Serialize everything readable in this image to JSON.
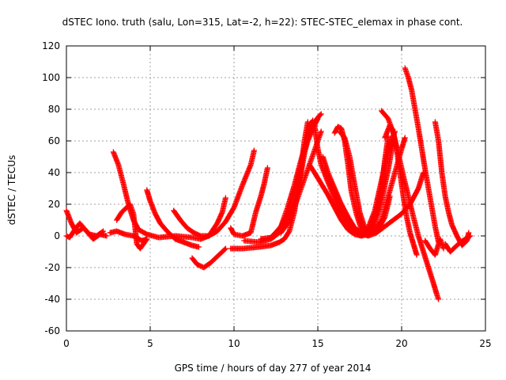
{
  "chart_data": {
    "type": "scatter",
    "title": "dSTEC Iono. truth (salu, Lon=315, Lat=-2, h=22): STEC-STEC_elemax in phase cont.",
    "xlabel": "GPS time / hours of day 277 of year 2014",
    "ylabel": "dSTEC  / TECUs",
    "xlim": [
      0,
      25
    ],
    "ylim": [
      -60,
      120
    ],
    "xticks": [
      0,
      5,
      10,
      15,
      20,
      25
    ],
    "yticks": [
      -60,
      -40,
      -20,
      0,
      20,
      40,
      60,
      80,
      100,
      120
    ],
    "grid": true,
    "marker": "+",
    "color": "#ff0000",
    "series": [
      {
        "points": [
          [
            0,
            16
          ],
          [
            0.3,
            8
          ],
          [
            0.6,
            2
          ],
          [
            1.0,
            5
          ],
          [
            1.4,
            1
          ],
          [
            1.8,
            0
          ],
          [
            2.2,
            3
          ]
        ]
      },
      {
        "points": [
          [
            0,
            0
          ],
          [
            0.2,
            -1
          ],
          [
            0.5,
            4
          ],
          [
            0.8,
            8
          ],
          [
            1.2,
            3
          ],
          [
            1.6,
            -2
          ],
          [
            2.0,
            1
          ],
          [
            2.4,
            0
          ]
        ]
      },
      {
        "points": [
          [
            2.8,
            53
          ],
          [
            3.1,
            45
          ],
          [
            3.4,
            33
          ],
          [
            3.7,
            20
          ],
          [
            4.0,
            10
          ],
          [
            4.3,
            4
          ],
          [
            4.8,
            1
          ],
          [
            5.5,
            -1
          ],
          [
            6.5,
            0
          ],
          [
            7.5,
            -1
          ],
          [
            8.0,
            -2
          ],
          [
            8.5,
            0
          ],
          [
            9.0,
            8
          ],
          [
            9.3,
            15
          ],
          [
            9.5,
            24
          ]
        ]
      },
      {
        "points": [
          [
            2.6,
            2
          ],
          [
            3.0,
            3
          ],
          [
            3.5,
            1
          ],
          [
            4.0,
            0
          ],
          [
            4.5,
            -3
          ],
          [
            4.8,
            -2
          ]
        ]
      },
      {
        "points": [
          [
            3.0,
            10
          ],
          [
            3.3,
            15
          ],
          [
            3.6,
            18
          ],
          [
            3.8,
            20
          ],
          [
            4.0,
            14
          ],
          [
            4.1,
            5
          ],
          [
            4.2,
            -5
          ],
          [
            4.4,
            -8
          ],
          [
            4.6,
            -5
          ],
          [
            4.8,
            -2
          ]
        ]
      },
      {
        "points": [
          [
            4.8,
            29
          ],
          [
            5.0,
            22
          ],
          [
            5.3,
            14
          ],
          [
            5.6,
            8
          ],
          [
            6.0,
            3
          ],
          [
            6.5,
            -2
          ],
          [
            7.0,
            -4
          ],
          [
            7.5,
            -6
          ],
          [
            7.9,
            -7
          ]
        ]
      },
      {
        "points": [
          [
            6.4,
            16
          ],
          [
            6.8,
            10
          ],
          [
            7.2,
            5
          ],
          [
            7.6,
            2
          ],
          [
            8.0,
            0
          ],
          [
            8.5,
            0
          ],
          [
            9.0,
            3
          ],
          [
            9.5,
            9
          ],
          [
            10.0,
            18
          ],
          [
            10.5,
            32
          ],
          [
            11.0,
            45
          ],
          [
            11.2,
            54
          ]
        ]
      },
      {
        "points": [
          [
            7.5,
            -14
          ],
          [
            7.8,
            -18
          ],
          [
            8.2,
            -20
          ],
          [
            8.6,
            -17
          ],
          [
            9.0,
            -13
          ],
          [
            9.5,
            -8
          ]
        ]
      },
      {
        "points": [
          [
            9.8,
            5
          ],
          [
            10.0,
            1
          ],
          [
            10.5,
            0
          ],
          [
            11.0,
            2
          ],
          [
            11.3,
            15
          ],
          [
            11.6,
            25
          ],
          [
            11.8,
            33
          ],
          [
            12.0,
            43
          ]
        ]
      },
      {
        "points": [
          [
            9.8,
            -8
          ],
          [
            10.5,
            -8
          ],
          [
            11.5,
            -7
          ],
          [
            12.2,
            -6
          ],
          [
            12.7,
            -4
          ],
          [
            13.0,
            -2
          ],
          [
            13.3,
            3
          ],
          [
            13.6,
            15
          ],
          [
            13.9,
            35
          ],
          [
            14.2,
            60
          ],
          [
            14.4,
            72
          ]
        ]
      },
      {
        "points": [
          [
            10.6,
            -3
          ],
          [
            11.5,
            -4
          ],
          [
            12.2,
            -2
          ],
          [
            12.7,
            2
          ],
          [
            13.2,
            10
          ],
          [
            13.6,
            22
          ],
          [
            14.0,
            40
          ],
          [
            14.3,
            58
          ],
          [
            14.6,
            71
          ],
          [
            14.7,
            73
          ]
        ]
      },
      {
        "points": [
          [
            11.6,
            -2
          ],
          [
            12.2,
            -1
          ],
          [
            12.7,
            4
          ],
          [
            13.2,
            14
          ],
          [
            13.6,
            28
          ],
          [
            14.0,
            45
          ],
          [
            14.4,
            60
          ],
          [
            14.8,
            70
          ],
          [
            15.0,
            74
          ]
        ]
      },
      {
        "points": [
          [
            12.3,
            0
          ],
          [
            12.8,
            6
          ],
          [
            13.2,
            18
          ],
          [
            13.6,
            32
          ],
          [
            14.0,
            48
          ],
          [
            14.4,
            62
          ],
          [
            14.8,
            72
          ],
          [
            15.1,
            76
          ],
          [
            15.2,
            77
          ]
        ]
      },
      {
        "points": [
          [
            12.8,
            2
          ],
          [
            13.2,
            8
          ],
          [
            13.6,
            18
          ],
          [
            14.0,
            30
          ],
          [
            14.4,
            42
          ],
          [
            14.8,
            54
          ],
          [
            15.0,
            60
          ],
          [
            15.2,
            66
          ]
        ]
      },
      {
        "points": [
          [
            14.5,
            45
          ],
          [
            14.8,
            40
          ],
          [
            15.2,
            33
          ],
          [
            15.6,
            26
          ],
          [
            16.0,
            18
          ],
          [
            16.4,
            10
          ],
          [
            16.8,
            4
          ],
          [
            17.2,
            1
          ],
          [
            17.6,
            0
          ],
          [
            18.0,
            3
          ],
          [
            18.4,
            12
          ],
          [
            18.8,
            30
          ],
          [
            19.0,
            48
          ],
          [
            19.2,
            63
          ]
        ]
      },
      {
        "points": [
          [
            14.8,
            70
          ],
          [
            15.0,
            55
          ],
          [
            15.2,
            45
          ],
          [
            15.6,
            34
          ],
          [
            16.0,
            24
          ],
          [
            16.4,
            14
          ],
          [
            16.8,
            7
          ],
          [
            17.2,
            2
          ],
          [
            17.6,
            0
          ],
          [
            18.0,
            1
          ],
          [
            18.4,
            8
          ],
          [
            18.8,
            22
          ],
          [
            19.2,
            42
          ],
          [
            19.5,
            60
          ]
        ]
      },
      {
        "points": [
          [
            15.3,
            50
          ],
          [
            15.6,
            40
          ],
          [
            16.0,
            30
          ],
          [
            16.4,
            20
          ],
          [
            16.8,
            12
          ],
          [
            17.2,
            5
          ],
          [
            17.6,
            2
          ],
          [
            18.0,
            5
          ],
          [
            18.4,
            16
          ],
          [
            18.8,
            35
          ],
          [
            19.2,
            55
          ],
          [
            19.6,
            66
          ]
        ]
      },
      {
        "points": [
          [
            16.0,
            65
          ],
          [
            16.2,
            69
          ],
          [
            16.4,
            68
          ],
          [
            16.6,
            60
          ],
          [
            16.8,
            45
          ],
          [
            17.0,
            28
          ],
          [
            17.3,
            14
          ],
          [
            17.6,
            4
          ],
          [
            18.0,
            1
          ],
          [
            18.4,
            3
          ],
          [
            18.8,
            10
          ],
          [
            19.2,
            25
          ],
          [
            19.6,
            40
          ],
          [
            20.0,
            55
          ],
          [
            20.2,
            62
          ]
        ]
      },
      {
        "points": [
          [
            16.3,
            66
          ],
          [
            16.6,
            62
          ],
          [
            16.9,
            50
          ],
          [
            17.2,
            32
          ],
          [
            17.5,
            15
          ],
          [
            17.8,
            5
          ],
          [
            18.2,
            2
          ],
          [
            18.6,
            4
          ],
          [
            19.0,
            12
          ],
          [
            19.3,
            25
          ]
        ]
      },
      {
        "points": [
          [
            15.5,
            40
          ],
          [
            16.0,
            28
          ],
          [
            16.5,
            15
          ],
          [
            17.0,
            6
          ],
          [
            17.5,
            2
          ],
          [
            18.0,
            0
          ],
          [
            18.5,
            2
          ],
          [
            19.0,
            6
          ],
          [
            19.5,
            10
          ],
          [
            20.0,
            14
          ],
          [
            20.5,
            20
          ],
          [
            21.0,
            30
          ],
          [
            21.3,
            40
          ]
        ]
      },
      {
        "points": [
          [
            19.0,
            62
          ],
          [
            19.3,
            70
          ],
          [
            19.5,
            66
          ],
          [
            19.7,
            55
          ],
          [
            19.9,
            40
          ],
          [
            20.1,
            25
          ],
          [
            20.3,
            12
          ],
          [
            20.5,
            2
          ],
          [
            20.7,
            -5
          ],
          [
            20.9,
            -12
          ]
        ]
      },
      {
        "points": [
          [
            18.8,
            79
          ],
          [
            19.2,
            74
          ],
          [
            19.5,
            65
          ],
          [
            19.8,
            52
          ],
          [
            20.1,
            38
          ],
          [
            20.4,
            25
          ],
          [
            20.7,
            12
          ],
          [
            21.0,
            0
          ],
          [
            21.3,
            -10
          ],
          [
            21.6,
            -20
          ],
          [
            21.9,
            -30
          ],
          [
            22.1,
            -37
          ],
          [
            22.2,
            -40
          ]
        ]
      },
      {
        "points": [
          [
            20.2,
            106
          ],
          [
            20.4,
            100
          ],
          [
            20.6,
            92
          ],
          [
            20.8,
            80
          ],
          [
            21.0,
            68
          ],
          [
            21.2,
            55
          ],
          [
            21.4,
            42
          ],
          [
            21.6,
            30
          ],
          [
            21.8,
            18
          ],
          [
            22.0,
            6
          ],
          [
            22.2,
            -4
          ]
        ]
      },
      {
        "points": [
          [
            21.4,
            -3
          ],
          [
            21.7,
            -8
          ],
          [
            22.0,
            -12
          ],
          [
            22.3,
            -2
          ],
          [
            22.5,
            -8
          ]
        ]
      },
      {
        "points": [
          [
            22.0,
            72
          ],
          [
            22.2,
            60
          ],
          [
            22.4,
            40
          ],
          [
            22.6,
            25
          ],
          [
            22.8,
            15
          ],
          [
            23.0,
            7
          ],
          [
            23.3,
            0
          ],
          [
            23.6,
            -6
          ],
          [
            23.9,
            -3
          ],
          [
            24.0,
            2
          ]
        ]
      },
      {
        "points": [
          [
            22.6,
            -5
          ],
          [
            22.9,
            -10
          ],
          [
            23.2,
            -7
          ],
          [
            23.5,
            -4
          ],
          [
            23.8,
            -2
          ],
          [
            24.1,
            0
          ]
        ]
      }
    ]
  }
}
